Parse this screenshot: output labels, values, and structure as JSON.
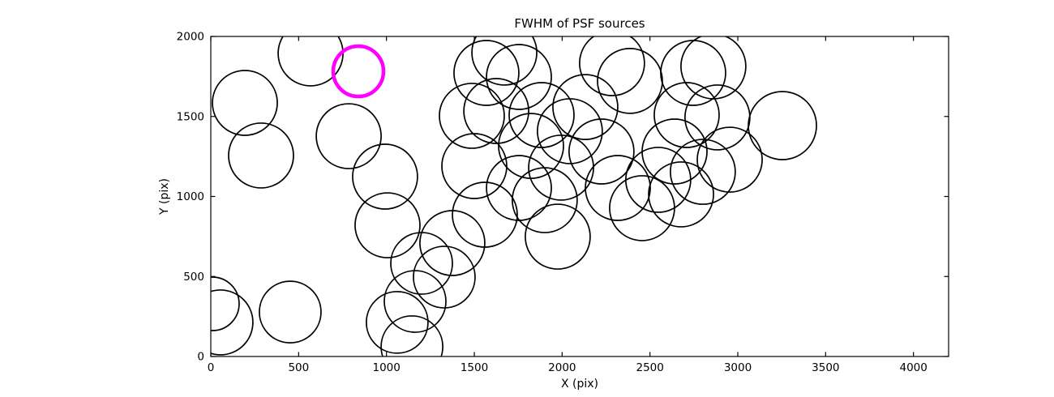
{
  "figure": {
    "background": "#ffffff"
  },
  "chart_data": {
    "type": "scatter",
    "title": "FWHM of PSF sources",
    "xlabel": "X (pix)",
    "ylabel": "Y (pix)",
    "xlim": [
      0,
      4200
    ],
    "ylim": [
      0,
      2000
    ],
    "xticks": [
      0,
      500,
      1000,
      1500,
      2000,
      2500,
      3000,
      3500,
      4000
    ],
    "yticks": [
      0,
      500,
      1000,
      1500,
      2000
    ],
    "grid": false,
    "legend": "none",
    "marker_style": {
      "fill": "none",
      "edge_color": "#000000",
      "edge_width": 1.7
    },
    "highlight_style": {
      "fill": "none",
      "edge_color": "#ff00ff",
      "edge_width": 4.5
    },
    "points": [
      {
        "x": 194,
        "y": 1585,
        "r": 40
      },
      {
        "x": 286,
        "y": 1256,
        "r": 40
      },
      {
        "x": 568,
        "y": 1894,
        "r": 40
      },
      {
        "x": 840,
        "y": 1782,
        "r": 31,
        "highlight": true
      },
      {
        "x": 785,
        "y": 1377,
        "r": 40
      },
      {
        "x": 9,
        "y": 329,
        "r": 33
      },
      {
        "x": 55,
        "y": 213,
        "r": 40
      },
      {
        "x": 452,
        "y": 278,
        "r": 38
      },
      {
        "x": 992,
        "y": 1124,
        "r": 40
      },
      {
        "x": 1006,
        "y": 820,
        "r": 40
      },
      {
        "x": 1200,
        "y": 582,
        "r": 38
      },
      {
        "x": 1163,
        "y": 344,
        "r": 38
      },
      {
        "x": 1061,
        "y": 213,
        "r": 38
      },
      {
        "x": 1145,
        "y": 61,
        "r": 38
      },
      {
        "x": 1375,
        "y": 709,
        "r": 40
      },
      {
        "x": 1486,
        "y": 1504,
        "r": 40
      },
      {
        "x": 1569,
        "y": 1772,
        "r": 40
      },
      {
        "x": 1671,
        "y": 1899,
        "r": 40
      },
      {
        "x": 1754,
        "y": 1747,
        "r": 40
      },
      {
        "x": 1625,
        "y": 1534,
        "r": 40
      },
      {
        "x": 1823,
        "y": 1316,
        "r": 40
      },
      {
        "x": 1754,
        "y": 1053,
        "r": 40
      },
      {
        "x": 1901,
        "y": 977,
        "r": 40
      },
      {
        "x": 1994,
        "y": 1180,
        "r": 40
      },
      {
        "x": 2044,
        "y": 1408,
        "r": 40
      },
      {
        "x": 2132,
        "y": 1559,
        "r": 40
      },
      {
        "x": 2284,
        "y": 1833,
        "r": 40
      },
      {
        "x": 2386,
        "y": 1722,
        "r": 40
      },
      {
        "x": 2224,
        "y": 1281,
        "r": 40
      },
      {
        "x": 2317,
        "y": 1053,
        "r": 40
      },
      {
        "x": 2455,
        "y": 927,
        "r": 40
      },
      {
        "x": 2547,
        "y": 1104,
        "r": 40
      },
      {
        "x": 2640,
        "y": 1281,
        "r": 40
      },
      {
        "x": 2746,
        "y": 1772,
        "r": 40
      },
      {
        "x": 2861,
        "y": 1813,
        "r": 40
      },
      {
        "x": 2709,
        "y": 1509,
        "r": 40
      },
      {
        "x": 2801,
        "y": 1154,
        "r": 40
      },
      {
        "x": 2954,
        "y": 1230,
        "r": 40
      },
      {
        "x": 3254,
        "y": 1443,
        "r": 42
      },
      {
        "x": 1560,
        "y": 886,
        "r": 40
      },
      {
        "x": 1975,
        "y": 749,
        "r": 40
      },
      {
        "x": 1883,
        "y": 1509,
        "r": 40
      },
      {
        "x": 1329,
        "y": 496,
        "r": 38
      },
      {
        "x": 1500,
        "y": 1190,
        "r": 40
      },
      {
        "x": 2677,
        "y": 1013,
        "r": 40
      },
      {
        "x": 2884,
        "y": 1494,
        "r": 40
      }
    ]
  }
}
